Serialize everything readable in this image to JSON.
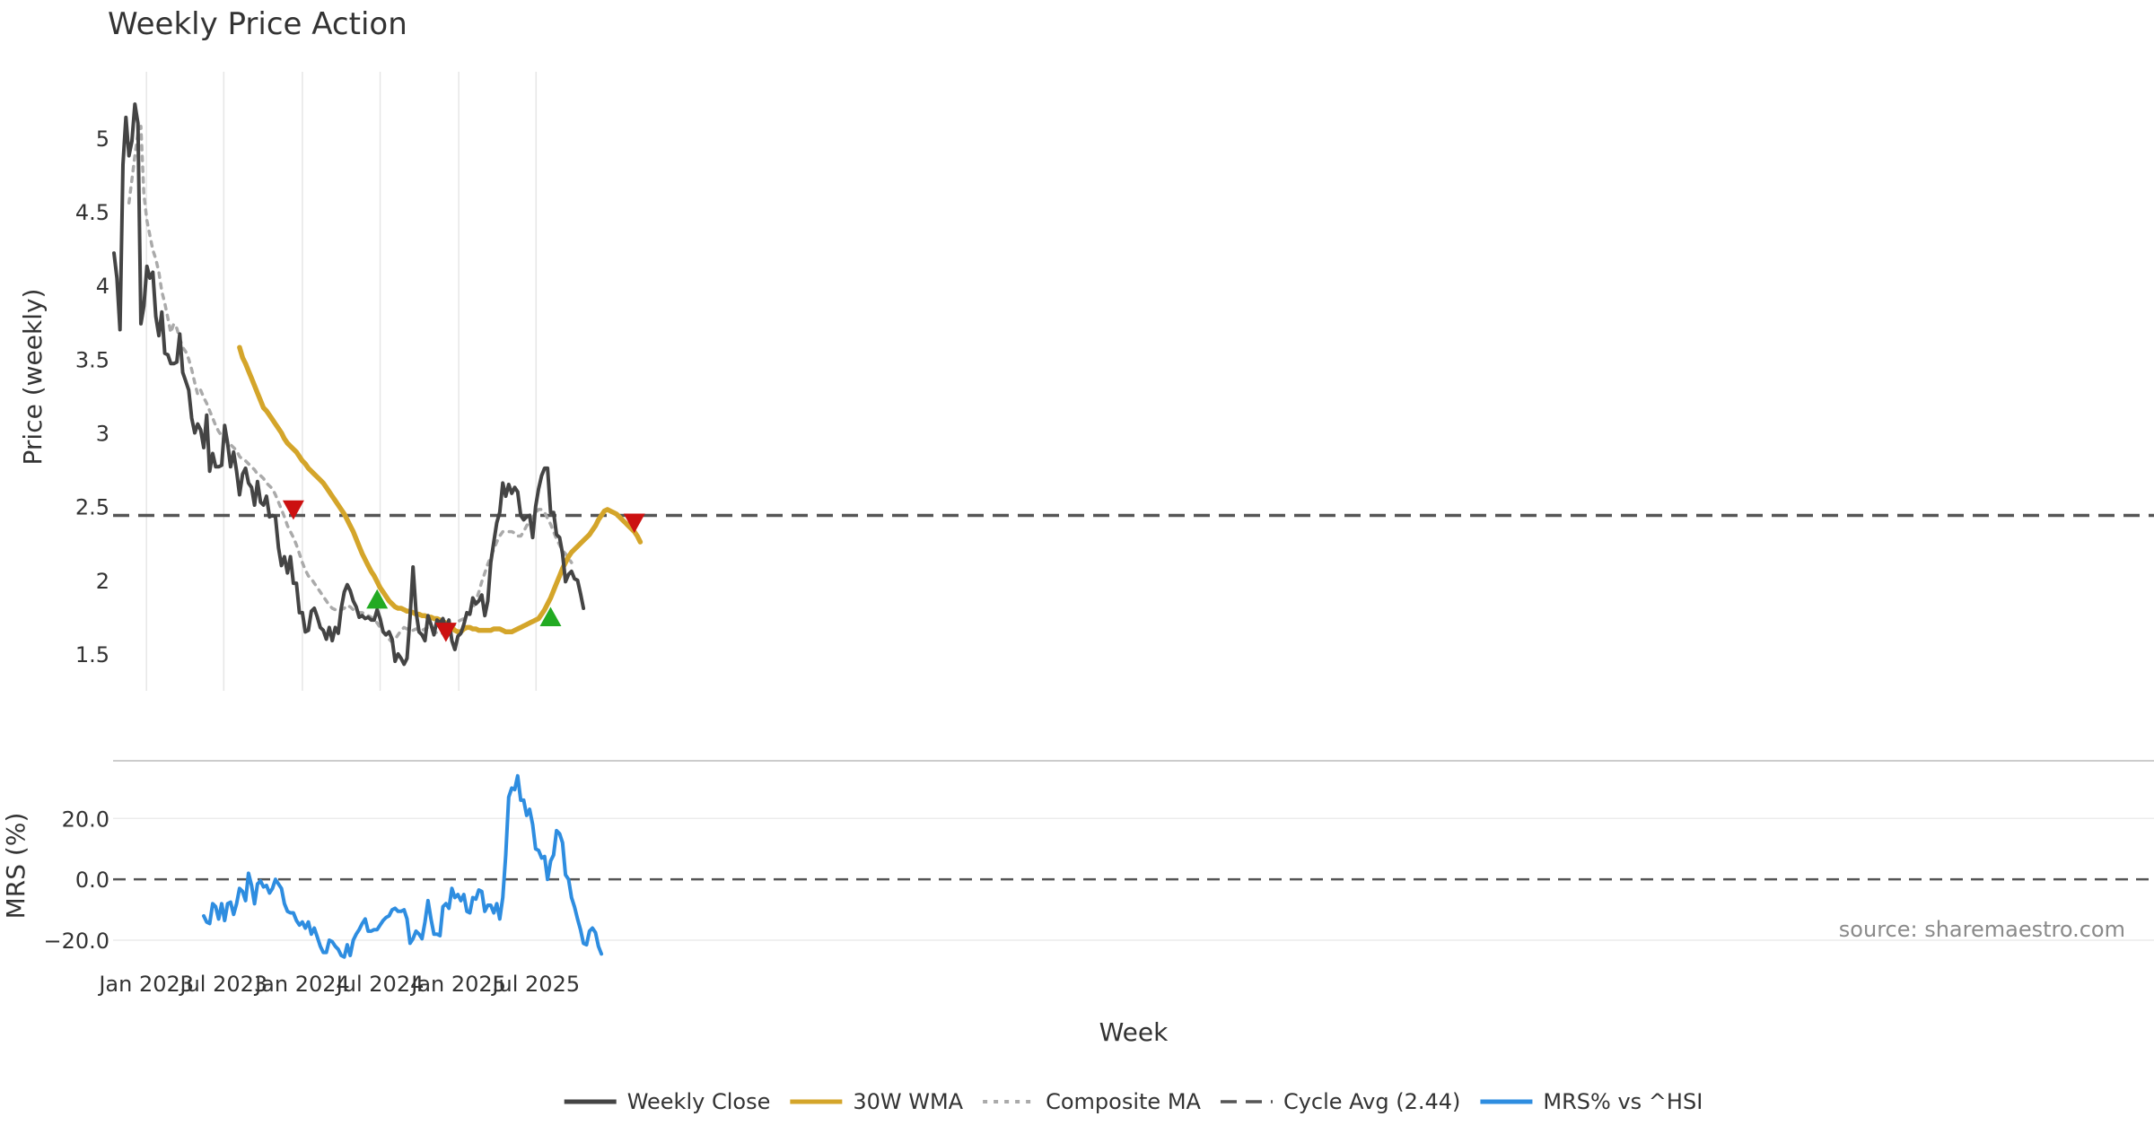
{
  "chart_data": [
    {
      "panel": "price",
      "type": "line",
      "title": "Weekly Price Action",
      "ylabel": "Price (weekly)",
      "ylim": [
        1.25,
        5.45
      ],
      "yticks": [
        1.5,
        2,
        2.5,
        3,
        3.5,
        4,
        4.5,
        5
      ],
      "ytick_labels": [
        "1.5",
        "2",
        "2.5",
        "3",
        "3.5",
        "4",
        "4.5",
        "5"
      ],
      "grid": "vertical",
      "x_start": "2022-10-17",
      "x_step_days": 7,
      "series": [
        {
          "name": "Weekly Close",
          "color": "#444444",
          "style": "solid",
          "values": [
            4.22,
            4.05,
            3.7,
            4.82,
            5.14,
            4.88,
            4.98,
            5.23,
            5.1,
            3.74,
            3.86,
            4.13,
            4.05,
            4.09,
            3.79,
            3.66,
            3.82,
            3.54,
            3.53,
            3.47,
            3.47,
            3.48,
            3.67,
            3.41,
            3.35,
            3.29,
            3.1,
            3.0,
            3.06,
            3.02,
            2.9,
            3.12,
            2.74,
            2.86,
            2.77,
            2.77,
            2.78,
            3.05,
            2.93,
            2.77,
            2.87,
            2.74,
            2.58,
            2.72,
            2.76,
            2.66,
            2.63,
            2.51,
            2.67,
            2.53,
            2.51,
            2.57,
            2.43,
            2.44,
            2.43,
            2.22,
            2.1,
            2.16,
            2.05,
            2.16,
            1.98,
            1.98,
            1.78,
            1.78,
            1.65,
            1.66,
            1.79,
            1.81,
            1.75,
            1.68,
            1.66,
            1.6,
            1.68,
            1.59,
            1.68,
            1.64,
            1.81,
            1.92,
            1.97,
            1.93,
            1.86,
            1.82,
            1.75,
            1.76,
            1.74,
            1.75,
            1.73,
            1.73,
            1.8,
            1.74,
            1.65,
            1.63,
            1.65,
            1.6,
            1.45,
            1.5,
            1.47,
            1.43,
            1.47,
            1.75,
            2.09,
            1.79,
            1.65,
            1.63,
            1.59,
            1.76,
            1.7,
            1.63,
            1.73,
            1.71,
            1.74,
            1.67,
            1.73,
            1.59,
            1.53,
            1.62,
            1.64,
            1.7,
            1.78,
            1.77,
            1.88,
            1.84,
            1.86,
            1.9,
            1.76,
            1.86,
            2.12,
            2.26,
            2.39,
            2.46,
            2.66,
            2.57,
            2.65,
            2.59,
            2.63,
            2.6,
            2.44,
            2.41,
            2.43,
            2.44,
            2.29,
            2.5,
            2.62,
            2.71,
            2.76,
            2.76,
            2.46,
            2.46,
            2.31,
            2.29,
            2.18,
            1.99,
            2.04,
            2.06,
            2.01,
            2.0,
            1.91,
            1.81
          ]
        },
        {
          "name": "30W WMA",
          "color": "#d4a52a",
          "style": "solid",
          "start_index": 42,
          "values": [
            3.58,
            3.51,
            3.47,
            3.42,
            3.37,
            3.32,
            3.27,
            3.22,
            3.17,
            3.15,
            3.12,
            3.09,
            3.06,
            3.03,
            3.0,
            2.96,
            2.93,
            2.91,
            2.89,
            2.87,
            2.84,
            2.81,
            2.79,
            2.76,
            2.74,
            2.72,
            2.7,
            2.68,
            2.66,
            2.63,
            2.6,
            2.57,
            2.54,
            2.51,
            2.48,
            2.45,
            2.41,
            2.37,
            2.33,
            2.28,
            2.23,
            2.18,
            2.14,
            2.1,
            2.06,
            2.03,
            1.99,
            1.95,
            1.92,
            1.89,
            1.86,
            1.84,
            1.82,
            1.81,
            1.81,
            1.8,
            1.79,
            1.79,
            1.78,
            1.77,
            1.77,
            1.76,
            1.76,
            1.75,
            1.75,
            1.74,
            1.74,
            1.73,
            1.72,
            1.71,
            1.7,
            1.68,
            1.66,
            1.65,
            1.65,
            1.67,
            1.68,
            1.68,
            1.67,
            1.67,
            1.66,
            1.66,
            1.66,
            1.66,
            1.66,
            1.67,
            1.67,
            1.67,
            1.66,
            1.65,
            1.65,
            1.65,
            1.66,
            1.67,
            1.68,
            1.69,
            1.7,
            1.71,
            1.72,
            1.73,
            1.74,
            1.77,
            1.8,
            1.84,
            1.88,
            1.93,
            1.98,
            2.03,
            2.08,
            2.12,
            2.16,
            2.19,
            2.21,
            2.23,
            2.25,
            2.27,
            2.29,
            2.31,
            2.34,
            2.37,
            2.41,
            2.44,
            2.47,
            2.48,
            2.47,
            2.46,
            2.45,
            2.43,
            2.41,
            2.39,
            2.37,
            2.35,
            2.33,
            2.3,
            2.26
          ]
        },
        {
          "name": "Composite MA",
          "color": "#aaaaaa",
          "style": "dotted",
          "start_index": 5,
          "values": [
            4.56,
            4.72,
            4.88,
            5.03,
            5.08,
            4.62,
            4.44,
            4.34,
            4.24,
            4.18,
            4.09,
            3.96,
            3.88,
            3.78,
            3.68,
            3.74,
            3.71,
            3.64,
            3.58,
            3.55,
            3.5,
            3.43,
            3.34,
            3.26,
            3.29,
            3.24,
            3.2,
            3.15,
            3.1,
            3.05,
            3.01,
            2.98,
            2.95,
            2.93,
            2.92,
            2.9,
            2.88,
            2.84,
            2.82,
            2.81,
            2.79,
            2.77,
            2.75,
            2.72,
            2.71,
            2.69,
            2.66,
            2.64,
            2.62,
            2.58,
            2.53,
            2.48,
            2.43,
            2.37,
            2.33,
            2.29,
            2.24,
            2.18,
            2.12,
            2.07,
            2.03,
            2.01,
            1.98,
            1.95,
            1.92,
            1.89,
            1.86,
            1.83,
            1.81,
            1.8,
            1.79,
            1.8,
            1.81,
            1.83,
            1.82,
            1.8,
            1.79,
            1.78,
            1.78,
            1.77,
            1.76,
            1.75,
            1.73,
            1.71,
            1.68,
            1.65,
            1.62,
            1.6,
            1.58,
            1.6,
            1.63,
            1.66,
            1.68,
            1.67,
            1.67,
            1.66,
            1.67,
            1.66,
            1.66,
            1.67,
            1.68,
            1.67,
            1.66,
            1.64,
            1.64,
            1.64,
            1.65,
            1.66,
            1.68,
            1.7,
            1.72,
            1.73,
            1.74,
            1.76,
            1.78,
            1.81,
            1.86,
            1.92,
            1.99,
            2.05,
            2.11,
            2.16,
            2.21,
            2.26,
            2.3,
            2.33,
            2.33,
            2.33,
            2.33,
            2.32,
            2.3,
            2.3,
            2.33,
            2.37,
            2.4,
            2.43,
            2.46,
            2.48,
            2.48,
            2.46,
            2.42,
            2.38,
            2.33,
            2.28,
            2.24,
            2.2,
            2.18,
            2.15,
            2.12
          ]
        }
      ],
      "reference_line": {
        "name": "Cycle Avg (2.44)",
        "y": 2.44,
        "color": "#555555",
        "style": "dashed"
      },
      "markers": [
        {
          "type": "sell",
          "week_index": 60,
          "y": 2.48,
          "color": "#cc1111"
        },
        {
          "type": "buy",
          "week_index": 88,
          "y": 1.87,
          "color": "#22aa22"
        },
        {
          "type": "sell",
          "week_index": 111,
          "y": 1.65,
          "color": "#cc1111"
        },
        {
          "type": "buy",
          "week_index": 146,
          "y": 1.75,
          "color": "#22aa22"
        },
        {
          "type": "sell",
          "week_index": 174,
          "y": 2.39,
          "color": "#cc1111"
        }
      ]
    },
    {
      "panel": "mrs",
      "type": "line",
      "ylabel": "MRS (%)",
      "ylim": [
        -25,
        36
      ],
      "yticks": [
        -20,
        0,
        20
      ],
      "ytick_labels": [
        "−20.0",
        "0.0",
        "20.0"
      ],
      "grid": "horizontal",
      "x_start": "2022-10-17",
      "x_step_days": 7,
      "series": [
        {
          "name": "MRS% vs ^HSI",
          "color": "#2e8de0",
          "style": "solid",
          "start_index": 30,
          "values": [
            -12,
            -14,
            -14.5,
            -8,
            -9,
            -13,
            -8,
            -13.5,
            -8,
            -7.5,
            -11.5,
            -8,
            -3,
            -4,
            -7,
            2,
            -2,
            -8,
            -1.5,
            -0.5,
            -2.5,
            -2,
            -4.5,
            -3,
            0,
            -1.5,
            -3,
            -8,
            -10.5,
            -11,
            -11,
            -13.5,
            -15,
            -14,
            -16,
            -14,
            -18,
            -16,
            -19,
            -22,
            -24,
            -24,
            -20,
            -20.5,
            -22,
            -23,
            -25,
            -25.5,
            -21.5,
            -25,
            -20,
            -18,
            -16.5,
            -14.5,
            -13,
            -17,
            -17,
            -16.5,
            -16.5,
            -15,
            -13.5,
            -12.5,
            -12,
            -10,
            -9.5,
            -10.5,
            -10.5,
            -10,
            -13,
            -21,
            -19.5,
            -17,
            -18,
            -19.5,
            -14,
            -7,
            -13,
            -18,
            -18,
            -18.5,
            -9,
            -8,
            -9.5,
            -3,
            -6,
            -5,
            -7,
            -5,
            -10.5,
            -11,
            -6,
            -6.5,
            -3.5,
            -4,
            -10.5,
            -8.5,
            -8.5,
            -11,
            -8,
            -13,
            -6,
            8,
            27,
            30,
            29.5,
            34,
            26,
            26,
            21,
            23,
            18,
            10,
            9.5,
            7,
            7.5,
            0,
            6,
            8,
            16,
            15,
            12,
            1.5,
            0,
            -6,
            -9,
            -13,
            -16.5,
            -21,
            -21.5,
            -17,
            -16,
            -17.5,
            -22,
            -24.5
          ]
        }
      ],
      "reference_line": {
        "y": 0,
        "color": "#555555",
        "style": "dashed"
      }
    }
  ],
  "x_axis": {
    "label": "Week",
    "ticks": [
      {
        "label": "Jan 2023",
        "date": "2023-01-01"
      },
      {
        "label": "Jul 2023",
        "date": "2023-07-01"
      },
      {
        "label": "Jan 2024",
        "date": "2024-01-01"
      },
      {
        "label": "Jul 2024",
        "date": "2024-07-01"
      },
      {
        "label": "Jan 2025",
        "date": "2025-01-01"
      },
      {
        "label": "Jul 2025",
        "date": "2025-07-01"
      }
    ]
  },
  "legend": {
    "placement": "bottom-center",
    "entries": [
      {
        "label": "Weekly Close",
        "color": "#444444",
        "style": "solid"
      },
      {
        "label": "30W WMA",
        "color": "#d4a52a",
        "style": "solid"
      },
      {
        "label": "Composite MA",
        "color": "#aaaaaa",
        "style": "dotted"
      },
      {
        "label": "Cycle Avg (2.44)",
        "color": "#555555",
        "style": "dashed"
      },
      {
        "label": "MRS% vs ^HSI",
        "color": "#2e8de0",
        "style": "solid"
      }
    ]
  },
  "watermark": "source: sharemaestro.com"
}
